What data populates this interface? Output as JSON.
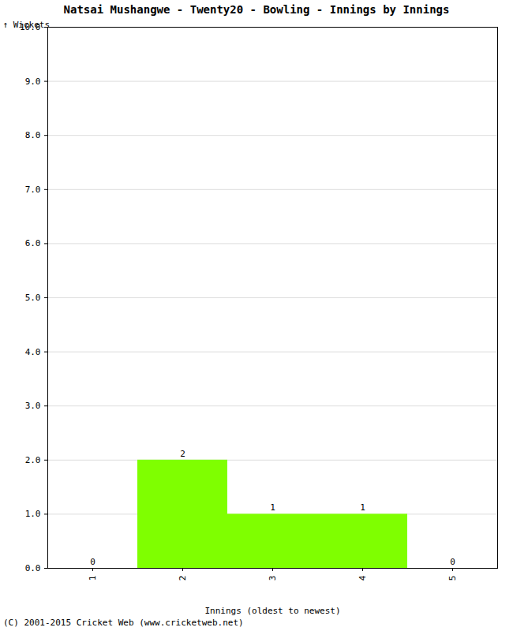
{
  "chart_data": {
    "type": "bar",
    "title": "Natsai Mushangwe - Twenty20 - Bowling - Innings by Innings",
    "x_label": "Innings (oldest to newest)",
    "y_label": "Wickets",
    "categories": [
      "1",
      "2",
      "3",
      "4",
      "5"
    ],
    "values": [
      0,
      2,
      1,
      1,
      0
    ],
    "color": "#7fff00",
    "ylim": [
      0,
      10
    ],
    "yticks": [
      0,
      1,
      2,
      3,
      4,
      5,
      6,
      7,
      8,
      9,
      10
    ],
    "grid": true,
    "data_labels": true,
    "annotations": [
      "(C) 2001-2015 Cricket Web (www.cricketweb.net)"
    ]
  }
}
